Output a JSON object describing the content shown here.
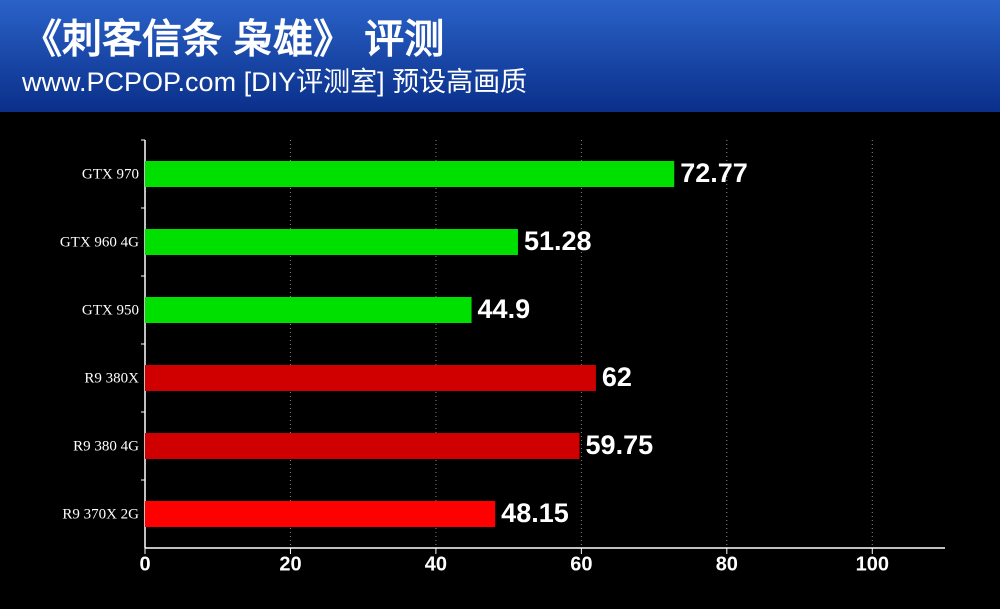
{
  "chart_data": {
    "type": "hbar",
    "title": "《刺客信条 枭雄》 评测",
    "subtitle": "www.PCPOP.com [DIY评测室] 预设高画质",
    "categories": [
      "GTX 970",
      "GTX 960 4G",
      "GTX 950",
      "R9 380X",
      "R9 380 4G",
      "R9 370X 2G"
    ],
    "values": [
      72.77,
      51.28,
      44.9,
      62,
      59.75,
      48.15
    ],
    "colors": [
      "#00e000",
      "#00e000",
      "#00e000",
      "#d00000",
      "#d00000",
      "#ff0000"
    ],
    "xlim": [
      0,
      110
    ],
    "xticks": [
      0,
      20,
      40,
      60,
      80,
      100
    ],
    "grid": true
  }
}
